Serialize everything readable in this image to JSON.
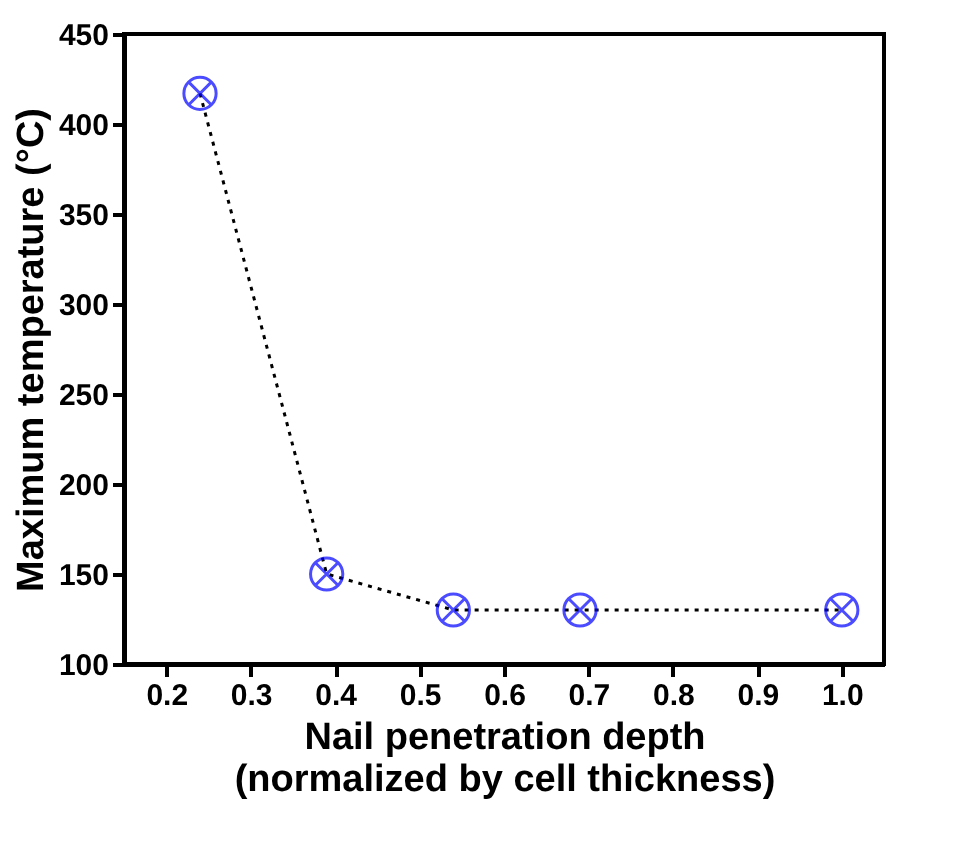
{
  "chart_data": {
    "type": "line",
    "xlabel": "Nail penetration depth\n(normalized by cell thickness)",
    "ylabel": "Maximum temperature (°C)",
    "x": [
      0.24,
      0.39,
      0.54,
      0.69,
      1.0
    ],
    "series": [
      {
        "color": "#0000ff",
        "values": [
          417,
          150,
          130,
          130,
          130
        ]
      }
    ],
    "xlim": [
      0.15,
      1.05
    ],
    "xticks": [
      0.2,
      0.3,
      0.4,
      0.5,
      0.6,
      0.7,
      0.8,
      0.9,
      {
        "value": 1.0,
        "label": "1.0"
      }
    ],
    "ylim": [
      100,
      450
    ],
    "yticks": [
      100,
      150,
      200,
      250,
      300,
      350,
      400,
      450
    ],
    "marker": "cross",
    "line_style": "dotted",
    "grid": false
  }
}
